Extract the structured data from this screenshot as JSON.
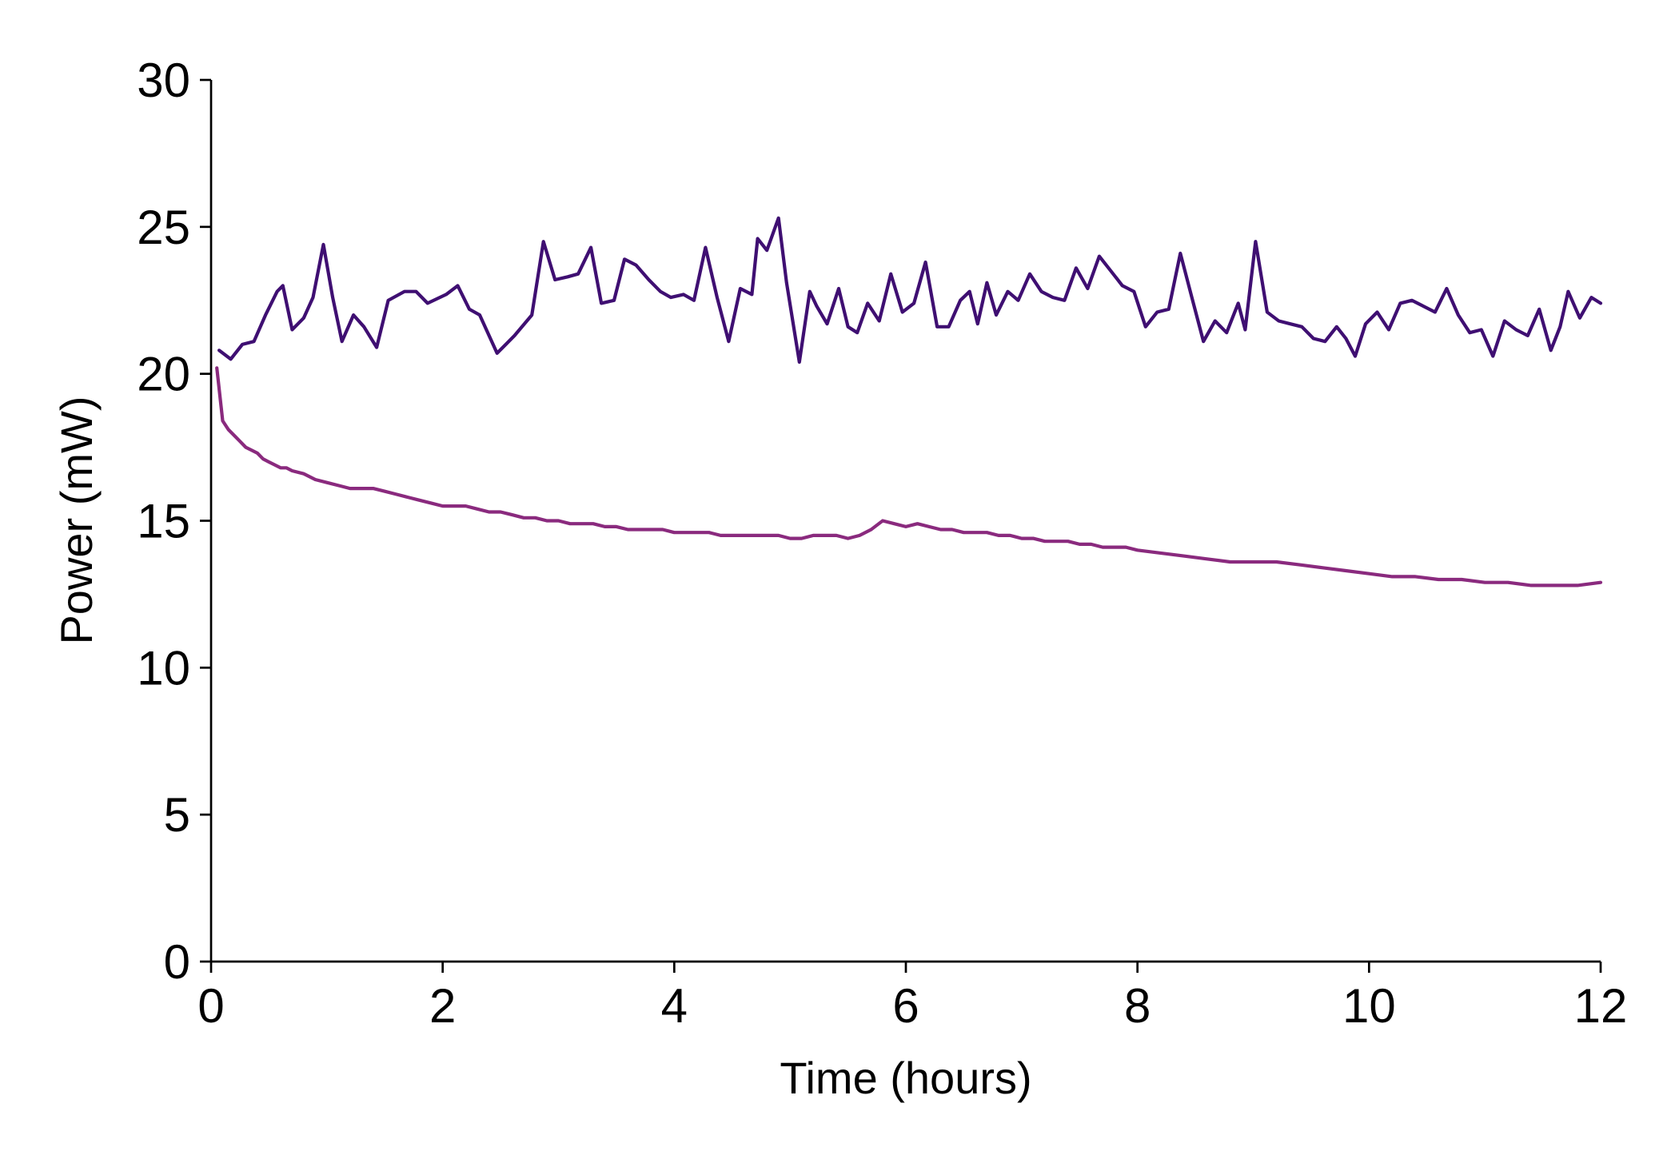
{
  "chart_data": {
    "type": "line",
    "title": "",
    "xlabel": "Time (hours)",
    "ylabel": "Power (mW)",
    "xlim": [
      0,
      12
    ],
    "ylim": [
      0,
      30
    ],
    "xticks": [
      0,
      2,
      4,
      6,
      8,
      10,
      12
    ],
    "xtick_labels": [
      "0",
      "2",
      "4",
      "6",
      "8",
      "10",
      "12"
    ],
    "yticks": [
      0,
      5,
      10,
      15,
      20,
      25,
      30
    ],
    "ytick_labels": [
      "0",
      "5",
      "10",
      "15",
      "20",
      "25",
      "30"
    ],
    "grid": false,
    "legend": "none",
    "series": [
      {
        "color": "#3f0f72",
        "x": [
          0.07,
          0.17,
          0.27,
          0.37,
          0.47,
          0.57,
          0.62,
          0.7,
          0.8,
          0.88,
          0.97,
          1.05,
          1.13,
          1.23,
          1.32,
          1.43,
          1.53,
          1.67,
          1.77,
          1.87,
          2.03,
          2.13,
          2.23,
          2.32,
          2.47,
          2.62,
          2.77,
          2.87,
          2.97,
          3.08,
          3.17,
          3.28,
          3.37,
          3.48,
          3.57,
          3.67,
          3.78,
          3.88,
          3.97,
          4.08,
          4.17,
          4.27,
          4.37,
          4.47,
          4.57,
          4.67,
          4.72,
          4.8,
          4.9,
          4.97,
          5.08,
          5.17,
          5.23,
          5.32,
          5.42,
          5.5,
          5.58,
          5.67,
          5.77,
          5.87,
          5.97,
          6.07,
          6.17,
          6.27,
          6.37,
          6.47,
          6.55,
          6.62,
          6.7,
          6.78,
          6.88,
          6.97,
          7.07,
          7.17,
          7.27,
          7.37,
          7.47,
          7.57,
          7.67,
          7.77,
          7.87,
          7.97,
          8.07,
          8.17,
          8.27,
          8.37,
          8.47,
          8.57,
          8.67,
          8.77,
          8.87,
          8.93,
          9.02,
          9.12,
          9.22,
          9.32,
          9.42,
          9.52,
          9.62,
          9.72,
          9.8,
          9.88,
          9.97,
          10.07,
          10.17,
          10.27,
          10.37,
          10.47,
          10.57,
          10.67,
          10.77,
          10.87,
          10.97,
          11.07,
          11.17,
          11.27,
          11.37,
          11.47,
          11.57,
          11.65,
          11.72,
          11.82,
          11.92,
          12.0
        ],
        "values": [
          20.8,
          20.5,
          21.0,
          21.1,
          22.0,
          22.8,
          23.0,
          21.5,
          21.9,
          22.6,
          24.4,
          22.6,
          21.1,
          22.0,
          21.6,
          20.9,
          22.5,
          22.8,
          22.8,
          22.4,
          22.7,
          23.0,
          22.2,
          22.0,
          20.7,
          21.3,
          22.0,
          24.5,
          23.2,
          23.3,
          23.4,
          24.3,
          22.4,
          22.5,
          23.9,
          23.7,
          23.2,
          22.8,
          22.6,
          22.7,
          22.5,
          24.3,
          22.6,
          21.1,
          22.9,
          22.7,
          24.6,
          24.2,
          25.3,
          23.1,
          20.4,
          22.8,
          22.3,
          21.7,
          22.9,
          21.6,
          21.4,
          22.4,
          21.8,
          23.4,
          22.1,
          22.4,
          23.8,
          21.6,
          21.6,
          22.5,
          22.8,
          21.7,
          23.1,
          22.0,
          22.8,
          22.5,
          23.4,
          22.8,
          22.6,
          22.5,
          23.6,
          22.9,
          24.0,
          23.5,
          23.0,
          22.8,
          21.6,
          22.1,
          22.2,
          24.1,
          22.6,
          21.1,
          21.8,
          21.4,
          22.4,
          21.5,
          24.5,
          22.1,
          21.8,
          21.7,
          21.6,
          21.2,
          21.1,
          21.6,
          21.2,
          20.6,
          21.7,
          22.1,
          21.5,
          22.4,
          22.5,
          22.3,
          22.1,
          22.9,
          22.0,
          21.4,
          21.5,
          20.6,
          21.8,
          21.5,
          21.3,
          22.2,
          20.8,
          21.6,
          22.8,
          21.9,
          22.6,
          22.4
        ]
      },
      {
        "color": "#8a2a7e",
        "x": [
          0.05,
          0.1,
          0.15,
          0.2,
          0.25,
          0.3,
          0.35,
          0.4,
          0.45,
          0.5,
          0.55,
          0.6,
          0.65,
          0.7,
          0.8,
          0.9,
          1.0,
          1.1,
          1.2,
          1.3,
          1.4,
          1.5,
          1.6,
          1.7,
          1.8,
          1.9,
          2.0,
          2.1,
          2.2,
          2.3,
          2.4,
          2.5,
          2.6,
          2.7,
          2.8,
          2.9,
          3.0,
          3.1,
          3.2,
          3.3,
          3.4,
          3.5,
          3.6,
          3.7,
          3.8,
          3.9,
          4.0,
          4.1,
          4.2,
          4.3,
          4.4,
          4.5,
          4.6,
          4.7,
          4.8,
          4.9,
          5.0,
          5.1,
          5.2,
          5.3,
          5.4,
          5.5,
          5.6,
          5.7,
          5.8,
          5.9,
          6.0,
          6.1,
          6.2,
          6.3,
          6.4,
          6.5,
          6.6,
          6.7,
          6.8,
          6.9,
          7.0,
          7.1,
          7.2,
          7.3,
          7.4,
          7.5,
          7.6,
          7.7,
          7.8,
          7.9,
          8.0,
          8.2,
          8.4,
          8.6,
          8.8,
          9.0,
          9.2,
          9.4,
          9.6,
          9.8,
          10.0,
          10.2,
          10.4,
          10.6,
          10.8,
          11.0,
          11.2,
          11.4,
          11.6,
          11.8,
          12.0
        ],
        "values": [
          20.2,
          18.4,
          18.1,
          17.9,
          17.7,
          17.5,
          17.4,
          17.3,
          17.1,
          17.0,
          16.9,
          16.8,
          16.8,
          16.7,
          16.6,
          16.4,
          16.3,
          16.2,
          16.1,
          16.1,
          16.1,
          16.0,
          15.9,
          15.8,
          15.7,
          15.6,
          15.5,
          15.5,
          15.5,
          15.4,
          15.3,
          15.3,
          15.2,
          15.1,
          15.1,
          15.0,
          15.0,
          14.9,
          14.9,
          14.9,
          14.8,
          14.8,
          14.7,
          14.7,
          14.7,
          14.7,
          14.6,
          14.6,
          14.6,
          14.6,
          14.5,
          14.5,
          14.5,
          14.5,
          14.5,
          14.5,
          14.4,
          14.4,
          14.5,
          14.5,
          14.5,
          14.4,
          14.5,
          14.7,
          15.0,
          14.9,
          14.8,
          14.9,
          14.8,
          14.7,
          14.7,
          14.6,
          14.6,
          14.6,
          14.5,
          14.5,
          14.4,
          14.4,
          14.3,
          14.3,
          14.3,
          14.2,
          14.2,
          14.1,
          14.1,
          14.1,
          14.0,
          13.9,
          13.8,
          13.7,
          13.6,
          13.6,
          13.6,
          13.5,
          13.4,
          13.3,
          13.2,
          13.1,
          13.1,
          13.0,
          13.0,
          12.9,
          12.9,
          12.8,
          12.8,
          12.8,
          12.9
        ]
      }
    ]
  }
}
